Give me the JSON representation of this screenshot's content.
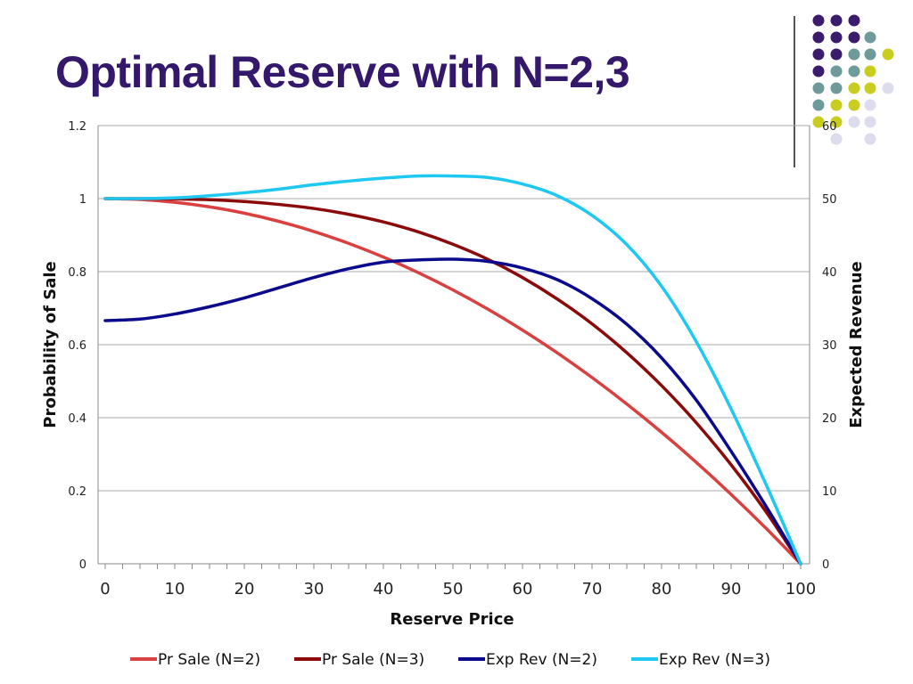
{
  "slide": {
    "title": "Optimal Reserve with N=2,3"
  },
  "decor": {
    "dot_colors": [
      "#3b1b6b",
      "#6e9a9a",
      "#c9cd1f",
      "#dcdcec"
    ]
  },
  "chart_data": {
    "type": "line",
    "title": "",
    "xlabel": "Reserve Price",
    "ylabel_left": "Probability of Sale",
    "ylabel_right": "Expected Revenue",
    "xlim": [
      0,
      100
    ],
    "ylim_left": [
      0,
      1.2
    ],
    "ylim_right": [
      0,
      60
    ],
    "x_ticks": [
      "0",
      "10",
      "20",
      "30",
      "40",
      "50",
      "60",
      "70",
      "80",
      "90",
      "100"
    ],
    "y_ticks_left": [
      "0",
      "0.2",
      "0.4",
      "0.6",
      "0.8",
      "1",
      "1.2"
    ],
    "y_ticks_right": [
      "0",
      "10",
      "20",
      "30",
      "40",
      "50",
      "60"
    ],
    "grid": true,
    "legend_position": "bottom",
    "x": [
      0,
      5,
      10,
      15,
      20,
      25,
      30,
      35,
      40,
      45,
      50,
      55,
      60,
      65,
      70,
      75,
      80,
      85,
      90,
      95,
      100
    ],
    "series": [
      {
        "name": "Pr Sale (N=2)",
        "axis": "left",
        "color": "#d94040",
        "values": [
          1.0,
          0.9975,
          0.99,
          0.9775,
          0.96,
          0.9375,
          0.91,
          0.8775,
          0.84,
          0.7975,
          0.75,
          0.6975,
          0.64,
          0.5775,
          0.51,
          0.4375,
          0.36,
          0.2775,
          0.19,
          0.0975,
          0.0
        ]
      },
      {
        "name": "Pr Sale (N=3)",
        "axis": "left",
        "color": "#8b0a0a",
        "values": [
          1.0,
          1.0,
          0.999,
          0.997,
          0.992,
          0.984,
          0.973,
          0.957,
          0.936,
          0.909,
          0.875,
          0.834,
          0.784,
          0.725,
          0.657,
          0.578,
          0.488,
          0.386,
          0.271,
          0.143,
          0.0
        ]
      },
      {
        "name": "Exp Rev (N=2)",
        "axis": "right",
        "color": "#0a0a8c",
        "values": [
          33.3,
          33.5,
          34.2,
          35.2,
          36.4,
          37.8,
          39.2,
          40.4,
          41.3,
          41.6,
          41.7,
          41.4,
          40.5,
          38.9,
          36.3,
          32.8,
          28.2,
          22.4,
          15.4,
          7.9,
          0.0
        ]
      },
      {
        "name": "Exp Rev (N=3)",
        "axis": "right",
        "color": "#1ec8f0",
        "values": [
          50.0,
          50.0,
          50.1,
          50.4,
          50.8,
          51.3,
          51.9,
          52.4,
          52.8,
          53.1,
          53.1,
          52.9,
          52.0,
          50.4,
          47.7,
          43.7,
          38.0,
          30.4,
          21.2,
          10.9,
          0.0
        ]
      }
    ]
  }
}
